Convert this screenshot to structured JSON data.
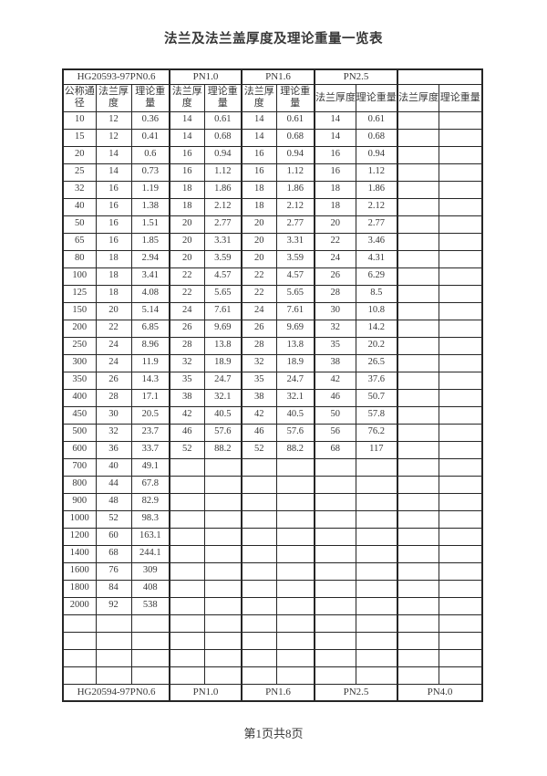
{
  "page": {
    "title": "法兰及法兰盖厚度及理论重量一览表",
    "page_indicator": "第1页共8页"
  },
  "colors": {
    "background": "#ffffff",
    "border": "#262626",
    "text": "#383838"
  },
  "table": {
    "header_groups": [
      {
        "label": "HG20593-97PN0.6",
        "span": 3
      },
      {
        "label": "PN1.0",
        "span": 2
      },
      {
        "label": "PN1.6",
        "span": 2
      },
      {
        "label": "PN2.5",
        "span": 2
      },
      {
        "label": "",
        "span": 2
      }
    ],
    "column_headers": [
      "公称通径",
      "法兰厚度",
      "理论重量",
      "法兰厚度",
      "理论重量",
      "法兰厚度",
      "理论重量",
      "法兰厚度",
      "理论重量",
      "法兰厚度",
      "理论重量"
    ],
    "rows": [
      [
        "10",
        "12",
        "0.36",
        "14",
        "0.61",
        "14",
        "0.61",
        "14",
        "0.61",
        "",
        ""
      ],
      [
        "15",
        "12",
        "0.41",
        "14",
        "0.68",
        "14",
        "0.68",
        "14",
        "0.68",
        "",
        ""
      ],
      [
        "20",
        "14",
        "0.6",
        "16",
        "0.94",
        "16",
        "0.94",
        "16",
        "0.94",
        "",
        ""
      ],
      [
        "25",
        "14",
        "0.73",
        "16",
        "1.12",
        "16",
        "1.12",
        "16",
        "1.12",
        "",
        ""
      ],
      [
        "32",
        "16",
        "1.19",
        "18",
        "1.86",
        "18",
        "1.86",
        "18",
        "1.86",
        "",
        ""
      ],
      [
        "40",
        "16",
        "1.38",
        "18",
        "2.12",
        "18",
        "2.12",
        "18",
        "2.12",
        "",
        ""
      ],
      [
        "50",
        "16",
        "1.51",
        "20",
        "2.77",
        "20",
        "2.77",
        "20",
        "2.77",
        "",
        ""
      ],
      [
        "65",
        "16",
        "1.85",
        "20",
        "3.31",
        "20",
        "3.31",
        "22",
        "3.46",
        "",
        ""
      ],
      [
        "80",
        "18",
        "2.94",
        "20",
        "3.59",
        "20",
        "3.59",
        "24",
        "4.31",
        "",
        ""
      ],
      [
        "100",
        "18",
        "3.41",
        "22",
        "4.57",
        "22",
        "4.57",
        "26",
        "6.29",
        "",
        ""
      ],
      [
        "125",
        "18",
        "4.08",
        "22",
        "5.65",
        "22",
        "5.65",
        "28",
        "8.5",
        "",
        ""
      ],
      [
        "150",
        "20",
        "5.14",
        "24",
        "7.61",
        "24",
        "7.61",
        "30",
        "10.8",
        "",
        ""
      ],
      [
        "200",
        "22",
        "6.85",
        "26",
        "9.69",
        "26",
        "9.69",
        "32",
        "14.2",
        "",
        ""
      ],
      [
        "250",
        "24",
        "8.96",
        "28",
        "13.8",
        "28",
        "13.8",
        "35",
        "20.2",
        "",
        ""
      ],
      [
        "300",
        "24",
        "11.9",
        "32",
        "18.9",
        "32",
        "18.9",
        "38",
        "26.5",
        "",
        ""
      ],
      [
        "350",
        "26",
        "14.3",
        "35",
        "24.7",
        "35",
        "24.7",
        "42",
        "37.6",
        "",
        ""
      ],
      [
        "400",
        "28",
        "17.1",
        "38",
        "32.1",
        "38",
        "32.1",
        "46",
        "50.7",
        "",
        ""
      ],
      [
        "450",
        "30",
        "20.5",
        "42",
        "40.5",
        "42",
        "40.5",
        "50",
        "57.8",
        "",
        ""
      ],
      [
        "500",
        "32",
        "23.7",
        "46",
        "57.6",
        "46",
        "57.6",
        "56",
        "76.2",
        "",
        ""
      ],
      [
        "600",
        "36",
        "33.7",
        "52",
        "88.2",
        "52",
        "88.2",
        "68",
        "117",
        "",
        ""
      ],
      [
        "700",
        "40",
        "49.1",
        "",
        "",
        "",
        "",
        "",
        "",
        "",
        ""
      ],
      [
        "800",
        "44",
        "67.8",
        "",
        "",
        "",
        "",
        "",
        "",
        "",
        ""
      ],
      [
        "900",
        "48",
        "82.9",
        "",
        "",
        "",
        "",
        "",
        "",
        "",
        ""
      ],
      [
        "1000",
        "52",
        "98.3",
        "",
        "",
        "",
        "",
        "",
        "",
        "",
        ""
      ],
      [
        "1200",
        "60",
        "163.1",
        "",
        "",
        "",
        "",
        "",
        "",
        "",
        ""
      ],
      [
        "1400",
        "68",
        "244.1",
        "",
        "",
        "",
        "",
        "",
        "",
        "",
        ""
      ],
      [
        "1600",
        "76",
        "309",
        "",
        "",
        "",
        "",
        "",
        "",
        "",
        ""
      ],
      [
        "1800",
        "84",
        "408",
        "",
        "",
        "",
        "",
        "",
        "",
        "",
        ""
      ],
      [
        "2000",
        "92",
        "538",
        "",
        "",
        "",
        "",
        "",
        "",
        "",
        ""
      ],
      [
        "",
        "",
        "",
        "",
        "",
        "",
        "",
        "",
        "",
        "",
        ""
      ],
      [
        "",
        "",
        "",
        "",
        "",
        "",
        "",
        "",
        "",
        "",
        ""
      ],
      [
        "",
        "",
        "",
        "",
        "",
        "",
        "",
        "",
        "",
        "",
        ""
      ],
      [
        "",
        "",
        "",
        "",
        "",
        "",
        "",
        "",
        "",
        "",
        ""
      ]
    ],
    "footer_groups": [
      {
        "label": "HG20594-97PN0.6",
        "span": 3
      },
      {
        "label": "PN1.0",
        "span": 2
      },
      {
        "label": "PN1.6",
        "span": 2
      },
      {
        "label": "PN2.5",
        "span": 2
      },
      {
        "label": "PN4.0",
        "span": 2
      }
    ]
  }
}
